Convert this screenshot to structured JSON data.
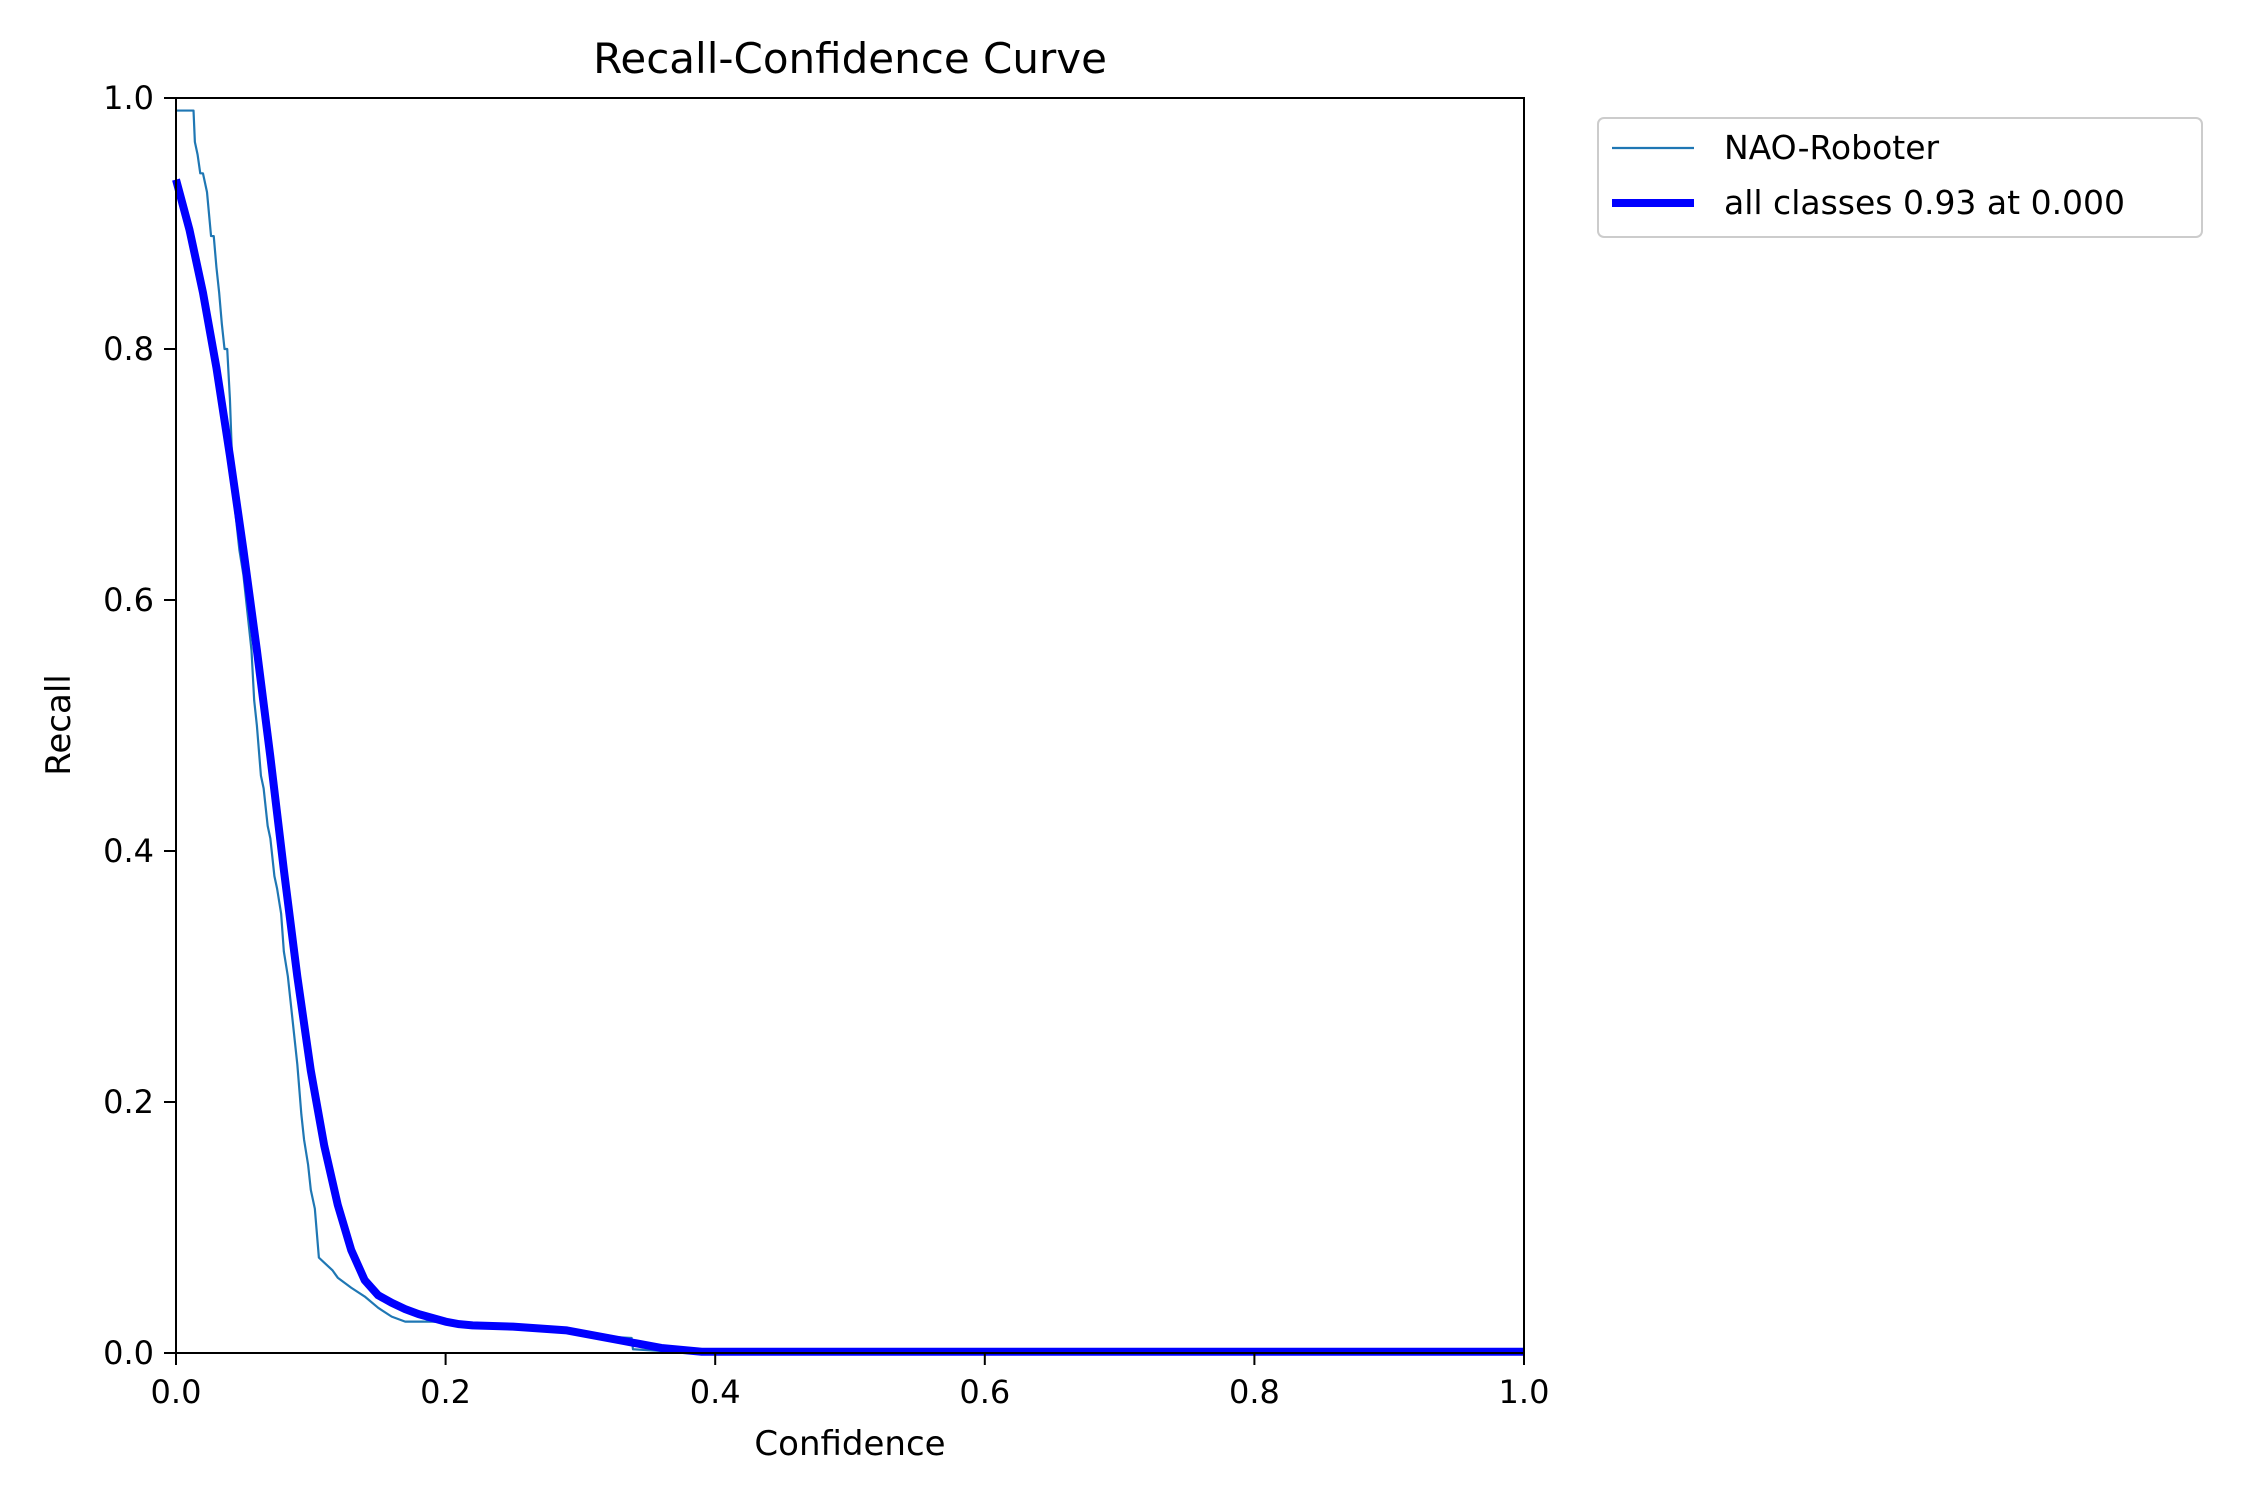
{
  "chart_data": {
    "type": "line",
    "title": "Recall-Confidence Curve",
    "xlabel": "Confidence",
    "ylabel": "Recall",
    "xlim": [
      0.0,
      1.0
    ],
    "ylim": [
      0.0,
      1.0
    ],
    "xticks": [
      0.0,
      0.2,
      0.4,
      0.6,
      0.8,
      1.0
    ],
    "xtick_labels": [
      "0.0",
      "0.2",
      "0.4",
      "0.6",
      "0.8",
      "1.0"
    ],
    "yticks": [
      0.0,
      0.2,
      0.4,
      0.6,
      0.8,
      1.0
    ],
    "ytick_labels": [
      "0.0",
      "0.2",
      "0.4",
      "0.6",
      "0.8",
      "1.0"
    ],
    "grid": false,
    "legend_position": "outside-top-right",
    "series": [
      {
        "name": "NAO-Roboter",
        "color": "#1f77b4",
        "x": [
          0.0,
          0.003,
          0.006,
          0.01,
          0.013,
          0.014,
          0.016,
          0.018,
          0.02,
          0.023,
          0.026,
          0.028,
          0.03,
          0.032,
          0.034,
          0.036,
          0.038,
          0.04,
          0.042,
          0.044,
          0.047,
          0.05,
          0.053,
          0.056,
          0.058,
          0.06,
          0.063,
          0.065,
          0.068,
          0.07,
          0.073,
          0.075,
          0.078,
          0.08,
          0.083,
          0.085,
          0.088,
          0.09,
          0.093,
          0.095,
          0.098,
          0.1,
          0.103,
          0.106,
          0.11,
          0.113,
          0.116,
          0.118,
          0.12,
          0.13,
          0.14,
          0.15,
          0.16,
          0.17,
          0.19,
          0.21,
          0.23,
          0.26,
          0.28,
          0.3,
          0.32,
          0.338,
          0.339,
          0.37,
          0.4,
          0.5,
          0.6,
          0.7,
          0.8,
          0.9,
          1.0
        ],
        "y": [
          0.99,
          0.99,
          0.99,
          0.99,
          0.99,
          0.965,
          0.955,
          0.94,
          0.94,
          0.925,
          0.89,
          0.89,
          0.865,
          0.845,
          0.82,
          0.8,
          0.8,
          0.76,
          0.7,
          0.67,
          0.64,
          0.62,
          0.59,
          0.56,
          0.52,
          0.5,
          0.46,
          0.45,
          0.42,
          0.41,
          0.38,
          0.37,
          0.35,
          0.32,
          0.3,
          0.28,
          0.25,
          0.23,
          0.19,
          0.17,
          0.15,
          0.13,
          0.115,
          0.076,
          0.072,
          0.069,
          0.066,
          0.063,
          0.06,
          0.052,
          0.045,
          0.036,
          0.029,
          0.025,
          0.025,
          0.024,
          0.022,
          0.02,
          0.017,
          0.015,
          0.013,
          0.012,
          0.003,
          0.001,
          0.0,
          0.0,
          0.0,
          0.0,
          0.0,
          0.0,
          0.0
        ]
      },
      {
        "name": "all classes 0.93 at 0.000",
        "color": "#0000ff",
        "x": [
          0.0,
          0.01,
          0.02,
          0.03,
          0.04,
          0.05,
          0.06,
          0.07,
          0.08,
          0.09,
          0.1,
          0.11,
          0.12,
          0.13,
          0.14,
          0.15,
          0.16,
          0.17,
          0.18,
          0.19,
          0.2,
          0.21,
          0.22,
          0.25,
          0.29,
          0.33,
          0.36,
          0.39,
          0.5,
          0.6,
          0.7,
          0.8,
          0.9,
          1.0
        ],
        "y": [
          0.935,
          0.895,
          0.845,
          0.785,
          0.715,
          0.64,
          0.56,
          0.475,
          0.385,
          0.3,
          0.225,
          0.165,
          0.118,
          0.082,
          0.058,
          0.046,
          0.04,
          0.035,
          0.031,
          0.028,
          0.025,
          0.023,
          0.022,
          0.021,
          0.018,
          0.01,
          0.004,
          0.001,
          0.001,
          0.001,
          0.001,
          0.001,
          0.001,
          0.001
        ]
      }
    ]
  }
}
